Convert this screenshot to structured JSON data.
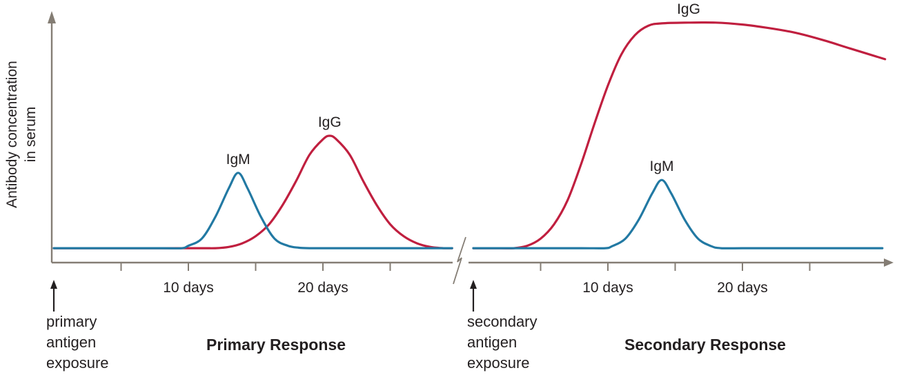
{
  "chart_data": {
    "type": "line",
    "title": "",
    "ylabel": "Antibody concentration in serum",
    "ylabel_lines": [
      "Antibody concentration",
      "in serum"
    ],
    "x_unit": "days",
    "grid": false,
    "legend": "inline-curve-labels",
    "axis_color": "#847d74",
    "label_color": "#231f20",
    "y_relative_scale": "unlabeled relative antibody concentration, 0 = baseline, 1 = top of axis",
    "panels": [
      {
        "id": "primary",
        "exposure_label_lines": [
          "primary",
          "antigen",
          "exposure"
        ],
        "response_label": "Primary Response",
        "ticks": [
          {
            "day": 5,
            "label": ""
          },
          {
            "day": 10,
            "label": "10 days"
          },
          {
            "day": 15,
            "label": ""
          },
          {
            "day": 20,
            "label": "20 days"
          },
          {
            "day": 25,
            "label": ""
          }
        ],
        "series": [
          {
            "name": "IgG",
            "color": "#c01f3f",
            "label_day": 20.5,
            "points": [
              [
                0,
                0.02
              ],
              [
                4,
                0.02
              ],
              [
                8,
                0.02
              ],
              [
                11,
                0.02
              ],
              [
                12,
                0.02
              ],
              [
                13,
                0.025
              ],
              [
                14,
                0.04
              ],
              [
                15,
                0.07
              ],
              [
                16,
                0.12
              ],
              [
                17,
                0.2
              ],
              [
                18,
                0.3
              ],
              [
                19,
                0.41
              ],
              [
                20,
                0.475
              ],
              [
                20.5,
                0.49
              ],
              [
                21,
                0.475
              ],
              [
                22,
                0.41
              ],
              [
                23,
                0.3
              ],
              [
                24,
                0.2
              ],
              [
                25,
                0.12
              ],
              [
                26,
                0.07
              ],
              [
                27,
                0.04
              ],
              [
                28,
                0.025
              ],
              [
                29,
                0.02
              ],
              [
                29.6,
                0.02
              ]
            ]
          },
          {
            "name": "IgM",
            "color": "#2279a3",
            "label_day": 13.7,
            "points": [
              [
                0,
                0.02
              ],
              [
                4,
                0.02
              ],
              [
                8,
                0.02
              ],
              [
                9.5,
                0.02
              ],
              [
                10,
                0.03
              ],
              [
                11,
                0.06
              ],
              [
                12,
                0.15
              ],
              [
                13,
                0.27
              ],
              [
                13.7,
                0.335
              ],
              [
                14.4,
                0.27
              ],
              [
                15.4,
                0.15
              ],
              [
                16.4,
                0.06
              ],
              [
                17.4,
                0.03
              ],
              [
                18.2,
                0.022
              ],
              [
                19,
                0.02
              ],
              [
                22,
                0.02
              ],
              [
                25,
                0.02
              ],
              [
                29.6,
                0.02
              ]
            ]
          }
        ]
      },
      {
        "id": "secondary",
        "exposure_label_lines": [
          "secondary",
          "antigen",
          "exposure"
        ],
        "response_label": "Secondary Response",
        "ticks": [
          {
            "day": 5,
            "label": ""
          },
          {
            "day": 10,
            "label": "10 days"
          },
          {
            "day": 15,
            "label": ""
          },
          {
            "day": 20,
            "label": "20 days"
          },
          {
            "day": 25,
            "label": ""
          }
        ],
        "series": [
          {
            "name": "IgG",
            "color": "#c01f3f",
            "label_day": 16,
            "points": [
              [
                0,
                0.02
              ],
              [
                2,
                0.02
              ],
              [
                3,
                0.02
              ],
              [
                4,
                0.03
              ],
              [
                5,
                0.06
              ],
              [
                6,
                0.12
              ],
              [
                7,
                0.22
              ],
              [
                8,
                0.37
              ],
              [
                9,
                0.54
              ],
              [
                10,
                0.7
              ],
              [
                11,
                0.83
              ],
              [
                12,
                0.91
              ],
              [
                13,
                0.95
              ],
              [
                14,
                0.96
              ],
              [
                16,
                0.963
              ],
              [
                18,
                0.963
              ],
              [
                20,
                0.955
              ],
              [
                22,
                0.94
              ],
              [
                24,
                0.92
              ],
              [
                26,
                0.89
              ],
              [
                28,
                0.855
              ],
              [
                30.6,
                0.81
              ]
            ]
          },
          {
            "name": "IgM",
            "color": "#2279a3",
            "label_day": 14,
            "points": [
              [
                0,
                0.02
              ],
              [
                4,
                0.02
              ],
              [
                8,
                0.02
              ],
              [
                9.8,
                0.02
              ],
              [
                10.3,
                0.028
              ],
              [
                11.3,
                0.06
              ],
              [
                12.3,
                0.14
              ],
              [
                13.3,
                0.25
              ],
              [
                14,
                0.305
              ],
              [
                14.7,
                0.25
              ],
              [
                15.7,
                0.14
              ],
              [
                16.7,
                0.06
              ],
              [
                17.7,
                0.028
              ],
              [
                18.4,
                0.02
              ],
              [
                20,
                0.02
              ],
              [
                24,
                0.02
              ],
              [
                30.4,
                0.02
              ]
            ]
          }
        ]
      }
    ]
  }
}
